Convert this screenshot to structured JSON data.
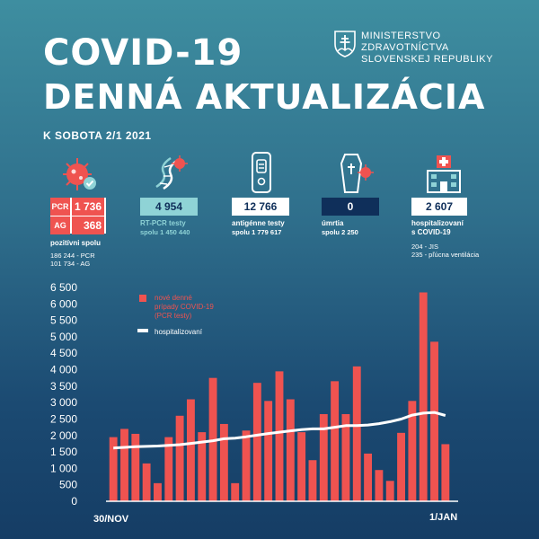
{
  "header": {
    "title_line1": "COVID-19",
    "title_line2": "DENNÁ AKTUALIZÁCIA",
    "ministry": [
      "MINISTERSTVO",
      "ZDRAVOTNÍCTVA",
      "SLOVENSKEJ REPUBLIKY"
    ],
    "date": "K SOBOTA 2/1 2021"
  },
  "stats": {
    "positive": {
      "pcr_tag": "PCR",
      "pcr_value": "1 736",
      "ag_tag": "AG",
      "ag_value": "368",
      "label": "pozitívni spolu",
      "sub1": "186 244 - PCR",
      "sub2": "101 734 - AG"
    },
    "rtpcr": {
      "value": "4 954",
      "label": "RT-PCR testy",
      "sub": "spolu 1 450 440"
    },
    "antigen": {
      "value": "12 766",
      "label": "antigénne testy",
      "sub": "spolu 1 779 617"
    },
    "deaths": {
      "value": "0",
      "label": "úmrtia",
      "sub": "spolu 2 250"
    },
    "hospital": {
      "value": "2 607",
      "label1": "hospitalizovaní",
      "label2": "s COVID-19",
      "sub1": "204 - JIS",
      "sub2": "235 - pľúcna ventilácia"
    }
  },
  "colors": {
    "accent_red": "#ef5350",
    "teal": "#8fd3d6",
    "navy": "#0f2f5a",
    "line": "#ffffff"
  },
  "icons": {
    "positive": "virus-check-icon",
    "rtpcr": "dna-virus-icon",
    "antigen": "antigen-test-icon",
    "deaths": "coffin-virus-icon",
    "hospital": "hospital-icon"
  },
  "chart_data": {
    "type": "bar",
    "x_start_label": "30/NOV",
    "x_end_label": "1/JAN",
    "legend": [
      {
        "name": "nové denné prípady COVID-19 (PCR testy)",
        "color": "#ef5350"
      },
      {
        "name": "hospitalizovaní",
        "color": "#ffffff"
      }
    ],
    "ylim": [
      0,
      6500
    ],
    "yticks": [
      "6 500",
      "6 000",
      "5 500",
      "5 000",
      "4 500",
      "4 000",
      "3 500",
      "3 000",
      "2 500",
      "2 000",
      "1 500",
      "1 000",
      "500",
      "0"
    ],
    "ytick_values": [
      6500,
      6000,
      5500,
      5000,
      4500,
      4000,
      3500,
      3000,
      2500,
      2000,
      1500,
      1000,
      500,
      0
    ],
    "series": [
      {
        "name": "nové denné prípady COVID-19 (PCR testy)",
        "type": "bar",
        "values": [
          1950,
          2200,
          2050,
          1150,
          550,
          1950,
          2600,
          3100,
          2100,
          3750,
          2350,
          550,
          2150,
          3600,
          3050,
          3950,
          3100,
          2100,
          1250,
          2650,
          3650,
          2650,
          4100,
          1450,
          950,
          620,
          2080,
          3050,
          6350,
          4850,
          1736
        ]
      },
      {
        "name": "hospitalizovaní",
        "type": "line",
        "values": [
          1620,
          1640,
          1660,
          1670,
          1680,
          1700,
          1720,
          1760,
          1800,
          1840,
          1900,
          1920,
          1960,
          2010,
          2060,
          2100,
          2140,
          2180,
          2200,
          2200,
          2250,
          2300,
          2300,
          2320,
          2360,
          2420,
          2500,
          2620,
          2680,
          2700,
          2607
        ]
      }
    ]
  }
}
